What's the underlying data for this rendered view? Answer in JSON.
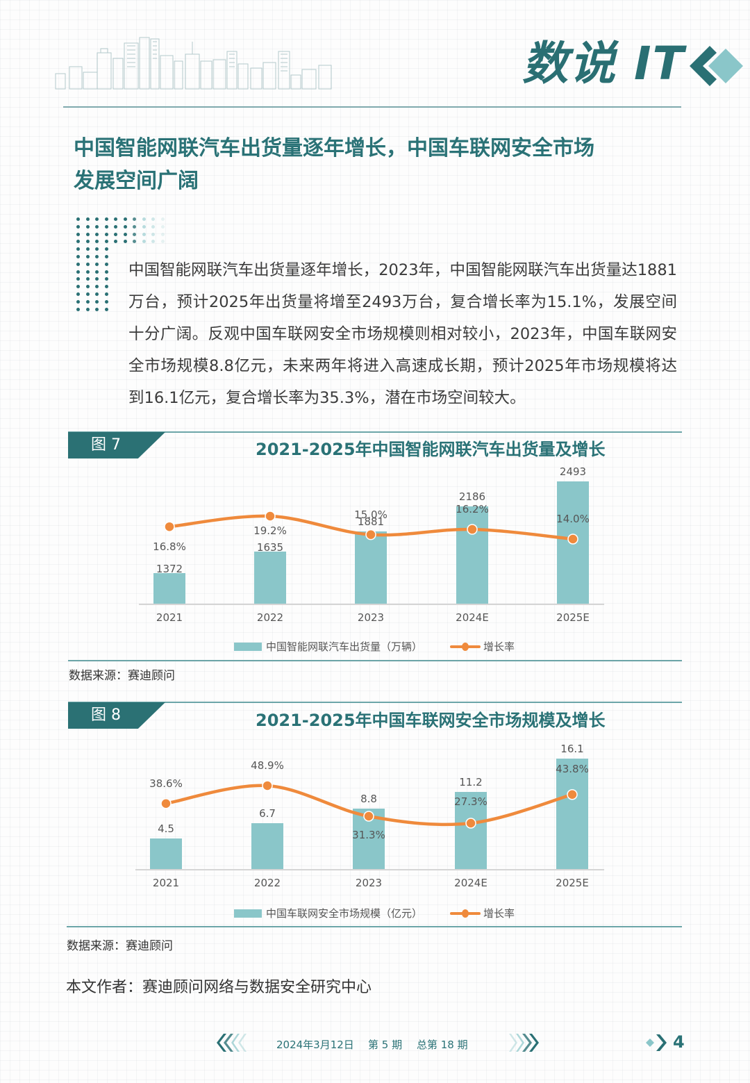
{
  "header": {
    "brand": "数说 IT",
    "logo_icon": "double-diamond-chevron-icon",
    "skyline_icon": "city-skyline-illustration"
  },
  "headline": {
    "line1": "中国智能网联汽车出货量逐年增长，中国车联网安全市场",
    "line2": "发展空间广阔"
  },
  "body": {
    "paragraph": "中国智能网联汽车出货量逐年增长，2023年，中国智能网联汽车出货量达1881万台，预计2025年出货量将增至2493万台，复合增长率为15.1%，发展空间十分广阔。反观中国车联网安全市场规模则相对较小，2023年，中国车联网安全市场规模8.8亿元，未来两年将进入高速成长期，预计2025年市场规模将达到16.1亿元，复合增长率为35.3%，潜在市场空间较大。"
  },
  "figures": [
    {
      "tag": "图 7",
      "title": "2021-2025年中国智能网联汽车出货量及增长",
      "source": "数据来源：赛迪顾问",
      "legend": {
        "bar": "中国智能网联汽车出货量（万辆）",
        "line": "增长率"
      }
    },
    {
      "tag": "图 8",
      "title": "2021-2025年中国车联网安全市场规模及增长",
      "source": "数据来源：赛迪顾问",
      "legend": {
        "bar": "中国车联网安全市场规模（亿元）",
        "line": "增长率"
      }
    }
  ],
  "chart_data": [
    {
      "type": "bar",
      "title": "2021-2025年中国智能网联汽车出货量及增长",
      "categories": [
        "2021",
        "2022",
        "2023",
        "2024E",
        "2025E"
      ],
      "series": [
        {
          "name": "中国智能网联汽车出货量（万辆）",
          "type": "bar",
          "values": [
            1372,
            1635,
            1881,
            2186,
            2493
          ],
          "labels": [
            "1372",
            "1635",
            "1881",
            "2186",
            "2493"
          ],
          "color": "#8ac6c9"
        },
        {
          "name": "增长率",
          "type": "line",
          "values": [
            16.8,
            19.2,
            15.0,
            16.2,
            14.0
          ],
          "labels": [
            "16.8%",
            "19.2%",
            "15.0%",
            "16.2%",
            "14.0%"
          ],
          "color": "#ef8a3c"
        }
      ],
      "xlabel": "",
      "ylabel": "",
      "grid": false,
      "legend_position": "bottom"
    },
    {
      "type": "bar",
      "title": "2021-2025年中国车联网安全市场规模及增长",
      "categories": [
        "2021",
        "2022",
        "2023",
        "2024E",
        "2025E"
      ],
      "series": [
        {
          "name": "中国车联网安全市场规模（亿元）",
          "type": "bar",
          "values": [
            4.5,
            6.7,
            8.8,
            11.2,
            16.1
          ],
          "labels": [
            "4.5",
            "6.7",
            "8.8",
            "11.2",
            "16.1"
          ],
          "color": "#8ac6c9"
        },
        {
          "name": "增长率",
          "type": "line",
          "values": [
            38.6,
            48.9,
            31.3,
            27.3,
            43.8
          ],
          "labels": [
            "38.6%",
            "48.9%",
            "31.3%",
            "27.3%",
            "43.8%"
          ],
          "color": "#ef8a3c"
        }
      ],
      "xlabel": "",
      "ylabel": "",
      "grid": false,
      "legend_position": "bottom"
    }
  ],
  "author": "本文作者：赛迪顾问网络与数据安全研究中心",
  "footer": {
    "date": "2024年3月12日",
    "issue": "第 5 期",
    "total_issue": "总第 18 期",
    "page": "4",
    "left_icon": "chevrons-left-icon",
    "right_icon": "chevrons-right-icon",
    "page_icon": "diamond-chevron-icon"
  },
  "colors": {
    "brand": "#2a7276",
    "bar": "#8ac6c9",
    "line": "#ef8a3c"
  }
}
